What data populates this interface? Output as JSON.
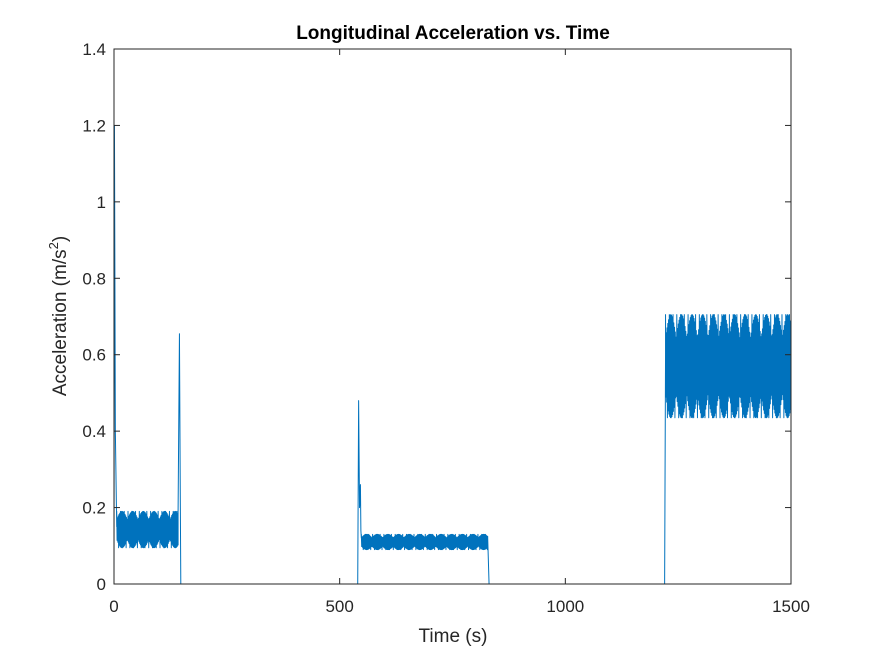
{
  "chart_data": {
    "type": "line",
    "title": "Longitudinal Acceleration vs. Time",
    "xlabel": "Time (s)",
    "ylabel": {
      "base": "Acceleration (m/s",
      "sup": "2",
      "tail": ")"
    },
    "xlim": [
      0,
      1500
    ],
    "ylim": [
      0,
      1.4
    ],
    "xticks": [
      0,
      500,
      1000,
      1500
    ],
    "xtick_labels": [
      "0",
      "500",
      "1000",
      "1500"
    ],
    "yticks": [
      0,
      0.2,
      0.4,
      0.6,
      0.8,
      1,
      1.2,
      1.4
    ],
    "ytick_labels": [
      "0",
      "0.2",
      "0.4",
      "0.6",
      "0.8",
      "1",
      "1.2",
      "1.4"
    ],
    "grid": false,
    "color": "#0072BD",
    "series": [
      {
        "segments": [
          {
            "kind": "line",
            "x": [
              0,
              1,
              3,
              6
            ],
            "y": [
              0,
              1.2,
              0.4,
              0.15
            ]
          },
          {
            "kind": "osc",
            "x0": 6,
            "x1": 142,
            "low": 0.095,
            "high": 0.19
          },
          {
            "kind": "line",
            "x": [
              142,
              145,
              147,
              148
            ],
            "y": [
              0.19,
              0.655,
              0.2,
              0
            ]
          },
          {
            "kind": "line",
            "x": [
              148,
              540
            ],
            "y": [
              0,
              0
            ]
          },
          {
            "kind": "line",
            "x": [
              540,
              542,
              544,
              546,
              547,
              548
            ],
            "y": [
              0,
              0.48,
              0.2,
              0.26,
              0.14,
              0.12
            ]
          },
          {
            "kind": "osc",
            "x0": 548,
            "x1": 828,
            "low": 0.09,
            "high": 0.13
          },
          {
            "kind": "line",
            "x": [
              828,
              831
            ],
            "y": [
              0.12,
              0
            ]
          },
          {
            "kind": "line",
            "x": [
              831,
              1220
            ],
            "y": [
              0,
              0
            ]
          },
          {
            "kind": "line",
            "x": [
              1220,
              1222
            ],
            "y": [
              0,
              0.6
            ]
          },
          {
            "kind": "osc",
            "x0": 1222,
            "x1": 1500,
            "low": 0.435,
            "high": 0.705
          }
        ]
      }
    ]
  }
}
